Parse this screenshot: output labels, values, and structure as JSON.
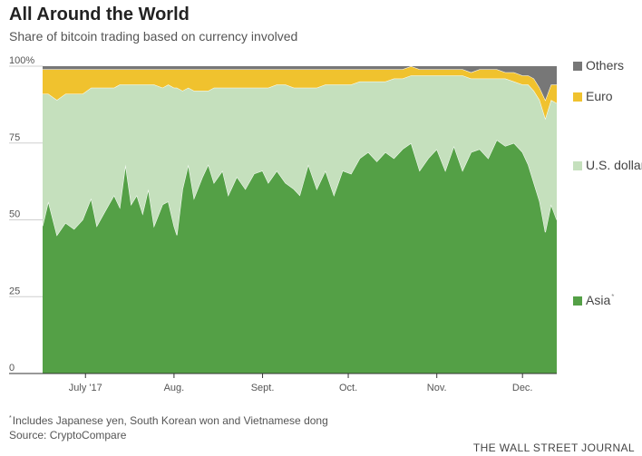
{
  "header": {
    "title": "All Around the World",
    "subtitle": "Share of bitcoin trading based on currency involved"
  },
  "chart_data": {
    "type": "area",
    "stacked": true,
    "title": "All Around the World",
    "subtitle": "Share of bitcoin trading based on currency involved",
    "ylim": [
      0,
      100
    ],
    "y_ticks": [
      0,
      25,
      50,
      75,
      100
    ],
    "y_tick_labels": [
      "0",
      "25",
      "50",
      "75",
      "100%"
    ],
    "x_ticks": [
      "July '17",
      "Aug.",
      "Sept.",
      "Oct.",
      "Nov.",
      "Dec."
    ],
    "x_tick_dates": [
      "2017-07-01",
      "2017-08-01",
      "2017-09-01",
      "2017-10-01",
      "2017-11-01",
      "2017-12-01"
    ],
    "x_start": "2017-06-16",
    "x_end": "2017-12-13",
    "grid": false,
    "legend": "right",
    "series": [
      {
        "name": "Asia",
        "color": "#54a046",
        "points": [
          [
            "2017-06-16",
            48
          ],
          [
            "2017-06-18",
            56
          ],
          [
            "2017-06-21",
            45
          ],
          [
            "2017-06-24",
            49
          ],
          [
            "2017-06-27",
            47
          ],
          [
            "2017-06-30",
            50
          ],
          [
            "2017-07-03",
            57
          ],
          [
            "2017-07-05",
            48
          ],
          [
            "2017-07-08",
            53
          ],
          [
            "2017-07-11",
            58
          ],
          [
            "2017-07-13",
            54
          ],
          [
            "2017-07-15",
            68
          ],
          [
            "2017-07-17",
            55
          ],
          [
            "2017-07-19",
            58
          ],
          [
            "2017-07-21",
            52
          ],
          [
            "2017-07-23",
            60
          ],
          [
            "2017-07-25",
            48
          ],
          [
            "2017-07-28",
            55
          ],
          [
            "2017-07-30",
            56
          ],
          [
            "2017-08-01",
            48
          ],
          [
            "2017-08-02",
            45
          ],
          [
            "2017-08-04",
            60
          ],
          [
            "2017-08-06",
            68
          ],
          [
            "2017-08-08",
            57
          ],
          [
            "2017-08-11",
            64
          ],
          [
            "2017-08-13",
            68
          ],
          [
            "2017-08-15",
            62
          ],
          [
            "2017-08-18",
            66
          ],
          [
            "2017-08-20",
            58
          ],
          [
            "2017-08-23",
            64
          ],
          [
            "2017-08-26",
            60
          ],
          [
            "2017-08-29",
            65
          ],
          [
            "2017-09-01",
            66
          ],
          [
            "2017-09-03",
            62
          ],
          [
            "2017-09-06",
            66
          ],
          [
            "2017-09-09",
            62
          ],
          [
            "2017-09-12",
            60
          ],
          [
            "2017-09-14",
            58
          ],
          [
            "2017-09-17",
            68
          ],
          [
            "2017-09-20",
            60
          ],
          [
            "2017-09-23",
            66
          ],
          [
            "2017-09-26",
            58
          ],
          [
            "2017-09-29",
            66
          ],
          [
            "2017-10-02",
            65
          ],
          [
            "2017-10-05",
            70
          ],
          [
            "2017-10-08",
            72
          ],
          [
            "2017-10-11",
            69
          ],
          [
            "2017-10-14",
            72
          ],
          [
            "2017-10-17",
            70
          ],
          [
            "2017-10-20",
            73
          ],
          [
            "2017-10-23",
            75
          ],
          [
            "2017-10-26",
            66
          ],
          [
            "2017-10-29",
            70
          ],
          [
            "2017-11-01",
            73
          ],
          [
            "2017-11-04",
            66
          ],
          [
            "2017-11-07",
            74
          ],
          [
            "2017-11-10",
            66
          ],
          [
            "2017-11-13",
            72
          ],
          [
            "2017-11-16",
            73
          ],
          [
            "2017-11-19",
            70
          ],
          [
            "2017-11-22",
            76
          ],
          [
            "2017-11-25",
            74
          ],
          [
            "2017-11-28",
            75
          ],
          [
            "2017-12-01",
            72
          ],
          [
            "2017-12-03",
            68
          ],
          [
            "2017-12-05",
            62
          ],
          [
            "2017-12-07",
            56
          ],
          [
            "2017-12-09",
            46
          ],
          [
            "2017-12-11",
            55
          ],
          [
            "2017-12-13",
            50
          ]
        ]
      },
      {
        "name": "U.S. dollar",
        "color": "#c5e0bd",
        "points": [
          [
            "2017-06-16",
            43
          ],
          [
            "2017-06-18",
            35
          ],
          [
            "2017-06-21",
            44
          ],
          [
            "2017-06-24",
            42
          ],
          [
            "2017-06-27",
            44
          ],
          [
            "2017-06-30",
            41
          ],
          [
            "2017-07-03",
            36
          ],
          [
            "2017-07-05",
            45
          ],
          [
            "2017-07-08",
            40
          ],
          [
            "2017-07-11",
            35
          ],
          [
            "2017-07-13",
            40
          ],
          [
            "2017-07-15",
            26
          ],
          [
            "2017-07-17",
            39
          ],
          [
            "2017-07-19",
            36
          ],
          [
            "2017-07-21",
            42
          ],
          [
            "2017-07-23",
            34
          ],
          [
            "2017-07-25",
            46
          ],
          [
            "2017-07-28",
            38
          ],
          [
            "2017-07-30",
            38
          ],
          [
            "2017-08-01",
            45
          ],
          [
            "2017-08-02",
            48
          ],
          [
            "2017-08-04",
            32
          ],
          [
            "2017-08-06",
            25
          ],
          [
            "2017-08-08",
            35
          ],
          [
            "2017-08-11",
            28
          ],
          [
            "2017-08-13",
            24
          ],
          [
            "2017-08-15",
            31
          ],
          [
            "2017-08-18",
            27
          ],
          [
            "2017-08-20",
            35
          ],
          [
            "2017-08-23",
            29
          ],
          [
            "2017-08-26",
            33
          ],
          [
            "2017-08-29",
            28
          ],
          [
            "2017-09-01",
            27
          ],
          [
            "2017-09-03",
            31
          ],
          [
            "2017-09-06",
            28
          ],
          [
            "2017-09-09",
            32
          ],
          [
            "2017-09-12",
            33
          ],
          [
            "2017-09-14",
            35
          ],
          [
            "2017-09-17",
            25
          ],
          [
            "2017-09-20",
            33
          ],
          [
            "2017-09-23",
            28
          ],
          [
            "2017-09-26",
            36
          ],
          [
            "2017-09-29",
            28
          ],
          [
            "2017-10-02",
            29
          ],
          [
            "2017-10-05",
            25
          ],
          [
            "2017-10-08",
            23
          ],
          [
            "2017-10-11",
            26
          ],
          [
            "2017-10-14",
            23
          ],
          [
            "2017-10-17",
            26
          ],
          [
            "2017-10-20",
            23
          ],
          [
            "2017-10-23",
            22
          ],
          [
            "2017-10-26",
            31
          ],
          [
            "2017-10-29",
            27
          ],
          [
            "2017-11-01",
            24
          ],
          [
            "2017-11-04",
            31
          ],
          [
            "2017-11-07",
            23
          ],
          [
            "2017-11-10",
            31
          ],
          [
            "2017-11-13",
            24
          ],
          [
            "2017-11-16",
            23
          ],
          [
            "2017-11-19",
            26
          ],
          [
            "2017-11-22",
            20
          ],
          [
            "2017-11-25",
            22
          ],
          [
            "2017-11-28",
            20
          ],
          [
            "2017-12-01",
            22
          ],
          [
            "2017-12-03",
            26
          ],
          [
            "2017-12-05",
            30
          ],
          [
            "2017-12-07",
            33
          ],
          [
            "2017-12-09",
            37
          ],
          [
            "2017-12-11",
            34
          ],
          [
            "2017-12-13",
            38
          ]
        ]
      },
      {
        "name": "Euro",
        "color": "#f0c22e",
        "points": [
          [
            "2017-06-16",
            8
          ],
          [
            "2017-06-18",
            8
          ],
          [
            "2017-06-21",
            10
          ],
          [
            "2017-06-24",
            8
          ],
          [
            "2017-06-27",
            8
          ],
          [
            "2017-06-30",
            8
          ],
          [
            "2017-07-03",
            6
          ],
          [
            "2017-07-05",
            6
          ],
          [
            "2017-07-08",
            6
          ],
          [
            "2017-07-11",
            6
          ],
          [
            "2017-07-13",
            5
          ],
          [
            "2017-07-15",
            5
          ],
          [
            "2017-07-17",
            5
          ],
          [
            "2017-07-19",
            5
          ],
          [
            "2017-07-21",
            5
          ],
          [
            "2017-07-23",
            5
          ],
          [
            "2017-07-25",
            5
          ],
          [
            "2017-07-28",
            6
          ],
          [
            "2017-07-30",
            5
          ],
          [
            "2017-08-01",
            6
          ],
          [
            "2017-08-02",
            6
          ],
          [
            "2017-08-04",
            7
          ],
          [
            "2017-08-06",
            6
          ],
          [
            "2017-08-08",
            7
          ],
          [
            "2017-08-11",
            7
          ],
          [
            "2017-08-13",
            7
          ],
          [
            "2017-08-15",
            6
          ],
          [
            "2017-08-18",
            6
          ],
          [
            "2017-08-20",
            6
          ],
          [
            "2017-08-23",
            6
          ],
          [
            "2017-08-26",
            6
          ],
          [
            "2017-08-29",
            6
          ],
          [
            "2017-09-01",
            6
          ],
          [
            "2017-09-03",
            6
          ],
          [
            "2017-09-06",
            5
          ],
          [
            "2017-09-09",
            5
          ],
          [
            "2017-09-12",
            6
          ],
          [
            "2017-09-14",
            6
          ],
          [
            "2017-09-17",
            6
          ],
          [
            "2017-09-20",
            6
          ],
          [
            "2017-09-23",
            5
          ],
          [
            "2017-09-26",
            5
          ],
          [
            "2017-09-29",
            5
          ],
          [
            "2017-10-02",
            5
          ],
          [
            "2017-10-05",
            4
          ],
          [
            "2017-10-08",
            4
          ],
          [
            "2017-10-11",
            4
          ],
          [
            "2017-10-14",
            4
          ],
          [
            "2017-10-17",
            3
          ],
          [
            "2017-10-20",
            3
          ],
          [
            "2017-10-23",
            3
          ],
          [
            "2017-10-26",
            2
          ],
          [
            "2017-10-29",
            2
          ],
          [
            "2017-11-01",
            2
          ],
          [
            "2017-11-04",
            2
          ],
          [
            "2017-11-07",
            2
          ],
          [
            "2017-11-10",
            2
          ],
          [
            "2017-11-13",
            2
          ],
          [
            "2017-11-16",
            3
          ],
          [
            "2017-11-19",
            3
          ],
          [
            "2017-11-22",
            3
          ],
          [
            "2017-11-25",
            2
          ],
          [
            "2017-11-28",
            3
          ],
          [
            "2017-12-01",
            3
          ],
          [
            "2017-12-03",
            3
          ],
          [
            "2017-12-05",
            4
          ],
          [
            "2017-12-07",
            4
          ],
          [
            "2017-12-09",
            6
          ],
          [
            "2017-12-11",
            5
          ],
          [
            "2017-12-13",
            6
          ]
        ]
      },
      {
        "name": "Others",
        "color": "#777777",
        "points": [
          [
            "2017-06-16",
            1
          ],
          [
            "2017-06-18",
            1
          ],
          [
            "2017-06-21",
            1
          ],
          [
            "2017-06-24",
            1
          ],
          [
            "2017-06-27",
            1
          ],
          [
            "2017-06-30",
            1
          ],
          [
            "2017-07-03",
            1
          ],
          [
            "2017-07-05",
            1
          ],
          [
            "2017-07-08",
            1
          ],
          [
            "2017-07-11",
            1
          ],
          [
            "2017-07-13",
            1
          ],
          [
            "2017-07-15",
            1
          ],
          [
            "2017-07-17",
            1
          ],
          [
            "2017-07-19",
            1
          ],
          [
            "2017-07-21",
            1
          ],
          [
            "2017-07-23",
            1
          ],
          [
            "2017-07-25",
            1
          ],
          [
            "2017-07-28",
            1
          ],
          [
            "2017-07-30",
            1
          ],
          [
            "2017-08-01",
            1
          ],
          [
            "2017-08-02",
            1
          ],
          [
            "2017-08-04",
            1
          ],
          [
            "2017-08-06",
            1
          ],
          [
            "2017-08-08",
            1
          ],
          [
            "2017-08-11",
            1
          ],
          [
            "2017-08-13",
            1
          ],
          [
            "2017-08-15",
            1
          ],
          [
            "2017-08-18",
            1
          ],
          [
            "2017-08-20",
            1
          ],
          [
            "2017-08-23",
            1
          ],
          [
            "2017-08-26",
            1
          ],
          [
            "2017-08-29",
            1
          ],
          [
            "2017-09-01",
            1
          ],
          [
            "2017-09-03",
            1
          ],
          [
            "2017-09-06",
            1
          ],
          [
            "2017-09-09",
            1
          ],
          [
            "2017-09-12",
            1
          ],
          [
            "2017-09-14",
            1
          ],
          [
            "2017-09-17",
            1
          ],
          [
            "2017-09-20",
            1
          ],
          [
            "2017-09-23",
            1
          ],
          [
            "2017-09-26",
            1
          ],
          [
            "2017-09-29",
            1
          ],
          [
            "2017-10-02",
            1
          ],
          [
            "2017-10-05",
            1
          ],
          [
            "2017-10-08",
            1
          ],
          [
            "2017-10-11",
            1
          ],
          [
            "2017-10-14",
            1
          ],
          [
            "2017-10-17",
            1
          ],
          [
            "2017-10-20",
            1
          ],
          [
            "2017-10-23",
            0
          ],
          [
            "2017-10-26",
            1
          ],
          [
            "2017-10-29",
            1
          ],
          [
            "2017-11-01",
            1
          ],
          [
            "2017-11-04",
            1
          ],
          [
            "2017-11-07",
            1
          ],
          [
            "2017-11-10",
            1
          ],
          [
            "2017-11-13",
            1
          ],
          [
            "2017-11-16",
            1
          ],
          [
            "2017-11-19",
            1
          ],
          [
            "2017-11-22",
            1
          ],
          [
            "2017-11-25",
            2
          ],
          [
            "2017-11-28",
            2
          ],
          [
            "2017-12-01",
            3
          ],
          [
            "2017-12-03",
            3
          ],
          [
            "2017-12-05",
            4
          ],
          [
            "2017-12-07",
            7
          ],
          [
            "2017-12-09",
            11
          ],
          [
            "2017-12-11",
            6
          ],
          [
            "2017-12-13",
            6
          ]
        ]
      }
    ]
  },
  "legend": {
    "others": "Others",
    "euro": "Euro",
    "usd": "U.S. dollar",
    "asia": "Asia",
    "asia_marker": "*"
  },
  "footer": {
    "footnote_marker": "*",
    "footnote": "Includes Japanese yen, South Korean won and Vietnamese dong",
    "source": "Source: CryptoCompare",
    "brand": "THE WALL STREET JOURNAL"
  }
}
